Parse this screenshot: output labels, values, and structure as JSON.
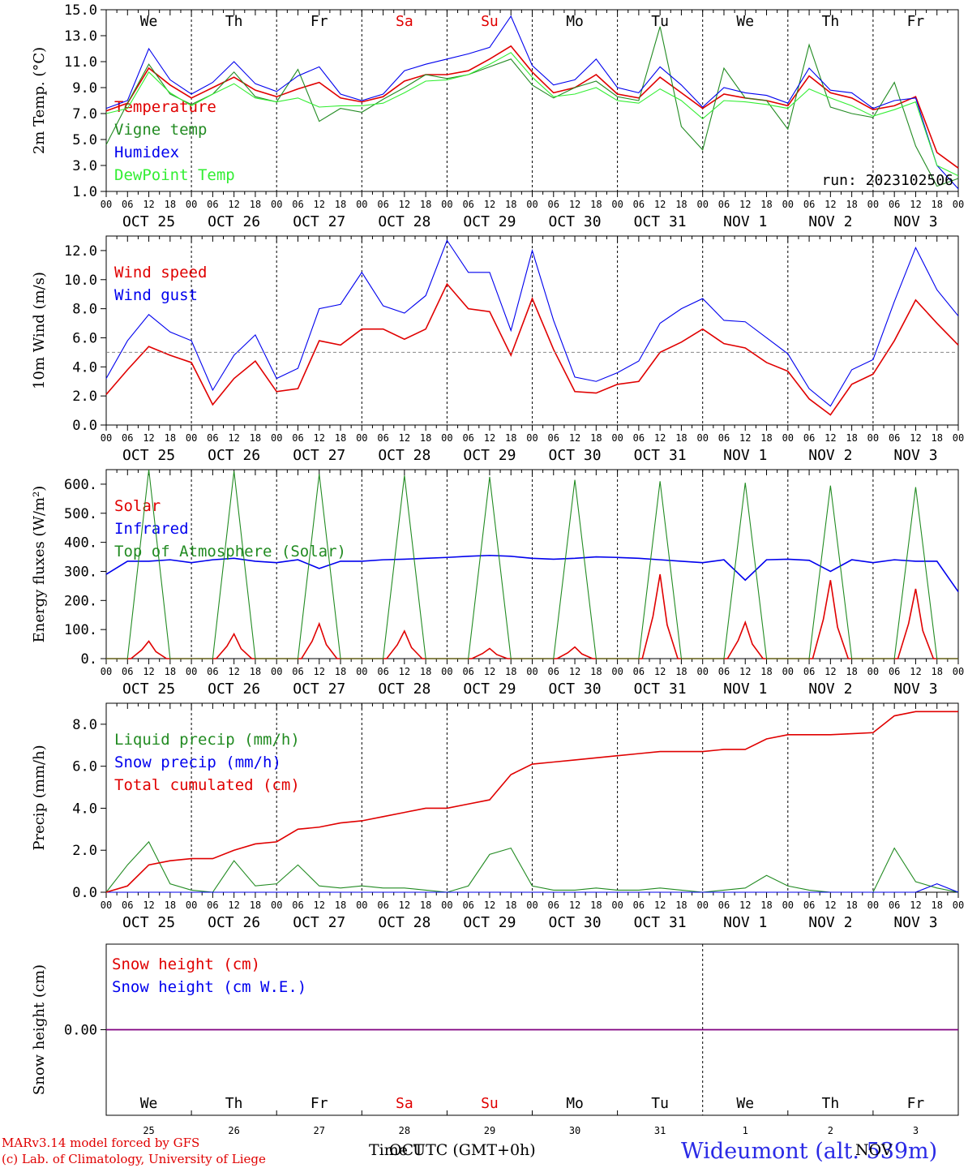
{
  "days": {
    "weekdays": [
      "We",
      "Th",
      "Fr",
      "Sa",
      "Su",
      "Mo",
      "Tu",
      "We",
      "Th",
      "Fr"
    ],
    "weekday_colors": [
      "#000000",
      "#000000",
      "#000000",
      "#e00000",
      "#e00000",
      "#000000",
      "#000000",
      "#000000",
      "#000000",
      "#000000"
    ],
    "dates": [
      "OCT 25",
      "OCT 26",
      "OCT 27",
      "OCT 28",
      "OCT 29",
      "OCT 30",
      "OCT 31",
      "NOV  1",
      "NOV  2",
      "NOV  3"
    ],
    "day_numbers": [
      "25",
      "26",
      "27",
      "28",
      "29",
      "30",
      "31",
      "1",
      "2",
      "3"
    ],
    "hour_ticks": [
      "00",
      "06",
      "12",
      "18"
    ],
    "last_tick": "00"
  },
  "colors": {
    "red": "#e00000",
    "green": "#228b22",
    "blue": "#0000ee",
    "lightgreen": "#33ee33",
    "purple": "#800080"
  },
  "run_label": "run: 2023102506",
  "footer": {
    "line1": "MARv3.14 model forced by GFS",
    "line2": "(c) Lab. of Climatology, University of Liege",
    "axis_title": "Time UTC (GMT+0h)",
    "overlap_text": "OCT",
    "site": "Wideumont (alt. 539m)",
    "nov_text": "NOV"
  },
  "chart_data": [
    {
      "type": "line",
      "ylabel": "2m Temp. (°C)",
      "ylim": [
        1.0,
        15.0
      ],
      "yticks": [
        "1.0",
        "3.0",
        "5.0",
        "7.0",
        "9.0",
        "11.0",
        "13.0",
        "15.0"
      ],
      "x_hours": [
        0,
        6,
        12,
        18,
        24,
        30,
        36,
        42,
        48,
        54,
        60,
        66,
        72,
        78,
        84,
        90,
        96,
        102,
        108,
        114,
        120,
        126,
        132,
        138,
        144,
        150,
        156,
        162,
        168,
        174,
        180,
        186,
        192,
        198,
        204,
        210,
        216,
        222,
        228,
        234,
        240
      ],
      "series": [
        {
          "name": "Temperature",
          "color": "red",
          "values": [
            7.2,
            7.8,
            10.5,
            9.2,
            8.2,
            9.0,
            9.8,
            8.8,
            8.3,
            8.9,
            9.4,
            8.2,
            7.9,
            8.3,
            9.5,
            10.0,
            10.0,
            10.3,
            11.2,
            12.2,
            10.2,
            8.6,
            9.0,
            10.0,
            8.5,
            8.2,
            9.8,
            8.6,
            7.4,
            8.5,
            8.2,
            8.0,
            7.6,
            9.9,
            8.6,
            8.2,
            7.3,
            7.6,
            8.3,
            4.0,
            2.8
          ]
        },
        {
          "name": "Vigne temp",
          "color": "green",
          "values": [
            4.6,
            7.8,
            10.8,
            8.5,
            7.7,
            8.5,
            10.2,
            8.3,
            7.9,
            10.4,
            6.4,
            7.4,
            7.1,
            8.1,
            9.0,
            10.0,
            9.7,
            10.0,
            10.6,
            11.2,
            9.2,
            8.2,
            9.0,
            9.5,
            8.3,
            8.0,
            13.7,
            6.0,
            4.2,
            10.5,
            8.2,
            8.0,
            5.8,
            12.3,
            7.5,
            7.0,
            6.7,
            9.4,
            4.5,
            1.4,
            2.0
          ]
        },
        {
          "name": "Humidex",
          "color": "blue",
          "values": [
            7.4,
            8.0,
            12.0,
            9.6,
            8.5,
            9.4,
            11.0,
            9.3,
            8.7,
            9.9,
            10.6,
            8.5,
            8.0,
            8.5,
            10.3,
            10.8,
            11.2,
            11.6,
            12.1,
            14.5,
            10.7,
            9.2,
            9.6,
            11.2,
            9.0,
            8.6,
            10.6,
            9.2,
            7.5,
            9.0,
            8.6,
            8.4,
            7.8,
            10.5,
            8.8,
            8.6,
            7.4,
            8.0,
            8.2,
            3.0,
            1.2
          ]
        },
        {
          "name": "DewPoint Temp",
          "color": "lightgreen",
          "values": [
            7.0,
            7.4,
            10.2,
            8.6,
            7.6,
            8.5,
            9.3,
            8.2,
            7.9,
            8.2,
            7.5,
            7.6,
            7.6,
            7.8,
            8.6,
            9.5,
            9.6,
            10.0,
            10.8,
            11.7,
            9.8,
            8.3,
            8.5,
            9.0,
            8.0,
            7.8,
            8.9,
            8.0,
            6.6,
            8.0,
            7.9,
            7.7,
            7.4,
            8.9,
            8.2,
            7.6,
            6.8,
            7.3,
            7.9,
            3.0,
            2.2
          ]
        }
      ]
    },
    {
      "type": "line",
      "ylabel": "10m Wind (m/s)",
      "ylim": [
        0.0,
        13.0
      ],
      "yticks": [
        "0.0",
        "2.0",
        "4.0",
        "6.0",
        "8.0",
        "10.0",
        "12.0"
      ],
      "reference_line": 5.0,
      "x_hours": [
        0,
        6,
        12,
        18,
        24,
        30,
        36,
        42,
        48,
        54,
        60,
        66,
        72,
        78,
        84,
        90,
        96,
        102,
        108,
        114,
        120,
        126,
        132,
        138,
        144,
        150,
        156,
        162,
        168,
        174,
        180,
        186,
        192,
        198,
        204,
        210,
        216,
        222,
        228,
        234,
        240
      ],
      "series": [
        {
          "name": "Wind speed",
          "color": "red",
          "values": [
            2.1,
            3.8,
            5.4,
            4.8,
            4.3,
            1.4,
            3.2,
            4.4,
            2.3,
            2.5,
            5.8,
            5.5,
            6.6,
            6.6,
            5.9,
            6.6,
            9.7,
            8.0,
            7.8,
            4.8,
            8.7,
            5.2,
            2.3,
            2.2,
            2.8,
            3.0,
            5.0,
            5.7,
            6.6,
            5.6,
            5.3,
            4.3,
            3.7,
            1.8,
            0.7,
            2.8,
            3.5,
            5.8,
            8.6,
            7.0,
            5.5
          ]
        },
        {
          "name": "Wind gust",
          "color": "blue",
          "values": [
            3.2,
            5.8,
            7.6,
            6.4,
            5.8,
            2.4,
            4.8,
            6.2,
            3.2,
            3.9,
            8.0,
            8.3,
            10.5,
            8.2,
            7.7,
            8.9,
            12.7,
            10.5,
            10.5,
            6.5,
            12.0,
            7.2,
            3.3,
            3.0,
            3.6,
            4.4,
            7.0,
            8.0,
            8.7,
            7.2,
            7.1,
            6.0,
            4.9,
            2.5,
            1.3,
            3.8,
            4.5,
            8.5,
            12.2,
            9.3,
            7.5
          ]
        }
      ]
    },
    {
      "type": "line",
      "ylabel": "Energy fluxes (W/m²)",
      "ylim": [
        0,
        650
      ],
      "yticks": [
        "0.",
        "100.",
        "200.",
        "300.",
        "400.",
        "500.",
        "600."
      ],
      "series": [
        {
          "name": "Solar",
          "color": "red",
          "day_peaks": [
            60,
            85,
            120,
            95,
            35,
            40,
            290,
            125,
            270,
            240
          ]
        },
        {
          "name": "Infrared",
          "color": "blue",
          "values": [
            290,
            335,
            335,
            340,
            330,
            340,
            345,
            335,
            330,
            340,
            310,
            335,
            335,
            340,
            342,
            345,
            348,
            352,
            355,
            352,
            345,
            342,
            345,
            350,
            348,
            345,
            340,
            335,
            330,
            340,
            270,
            340,
            342,
            338,
            300,
            340,
            330,
            340,
            335,
            335,
            230
          ]
        },
        {
          "name": "Top of Atmosphere (Solar)",
          "color": "green",
          "day_peaks": [
            650,
            645,
            635,
            630,
            625,
            615,
            610,
            605,
            595,
            590
          ]
        }
      ]
    },
    {
      "type": "line",
      "ylabel": "Precip (mm/h)",
      "ylim": [
        0.0,
        9.0
      ],
      "yticks": [
        "0.0",
        "2.0",
        "4.0",
        "6.0",
        "8.0"
      ],
      "x_hours": [
        0,
        6,
        12,
        18,
        24,
        30,
        36,
        42,
        48,
        54,
        60,
        66,
        72,
        78,
        84,
        90,
        96,
        102,
        108,
        114,
        120,
        126,
        132,
        138,
        144,
        150,
        156,
        162,
        168,
        174,
        180,
        186,
        192,
        198,
        204,
        210,
        216,
        222,
        228,
        234,
        240
      ],
      "series": [
        {
          "name": "Liquid precip (mm/h)",
          "color": "green",
          "values": [
            0.0,
            1.3,
            2.4,
            0.4,
            0.1,
            0.0,
            1.5,
            0.3,
            0.4,
            1.3,
            0.3,
            0.2,
            0.3,
            0.2,
            0.2,
            0.1,
            0.0,
            0.3,
            1.8,
            2.1,
            0.3,
            0.1,
            0.1,
            0.2,
            0.1,
            0.1,
            0.2,
            0.1,
            0.0,
            0.1,
            0.2,
            0.8,
            0.3,
            0.1,
            0.0,
            0.0,
            0.0,
            2.1,
            0.5,
            0.2,
            0.0
          ]
        },
        {
          "name": "Snow precip (mm/h)",
          "color": "blue",
          "values": [
            0,
            0,
            0,
            0,
            0,
            0,
            0,
            0,
            0,
            0,
            0,
            0,
            0,
            0,
            0,
            0,
            0,
            0,
            0,
            0,
            0,
            0,
            0,
            0,
            0,
            0,
            0,
            0,
            0,
            0,
            0,
            0,
            0,
            0,
            0,
            0,
            0,
            0,
            0,
            0.4,
            0
          ]
        },
        {
          "name": "Total cumulated (cm)",
          "color": "red",
          "values": [
            0.0,
            0.3,
            1.3,
            1.5,
            1.6,
            1.6,
            2.0,
            2.3,
            2.4,
            3.0,
            3.1,
            3.3,
            3.4,
            3.6,
            3.8,
            4.0,
            4.0,
            4.2,
            4.4,
            5.6,
            6.1,
            6.2,
            6.3,
            6.4,
            6.5,
            6.6,
            6.7,
            6.7,
            6.7,
            6.8,
            6.8,
            7.3,
            7.5,
            7.5,
            7.5,
            7.55,
            7.6,
            8.4,
            8.6,
            8.6,
            8.6
          ]
        }
      ]
    },
    {
      "type": "line",
      "ylabel": "Snow height (cm)",
      "yticks": [
        "0.00"
      ],
      "series": [
        {
          "name": "Snow height (cm)",
          "color": "red",
          "values": [
            0.0,
            0.0
          ]
        },
        {
          "name": "Snow height (cm W.E.)",
          "color": "blue",
          "values": [
            0.0,
            0.0
          ]
        }
      ]
    }
  ]
}
